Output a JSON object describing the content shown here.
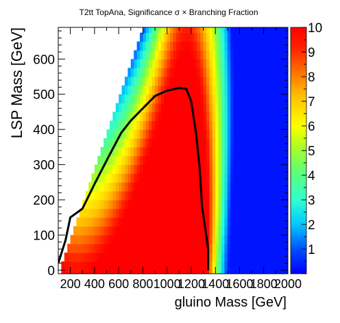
{
  "chart_data": {
    "type": "heatmap",
    "title": "T2tt TopAna, Significance σ × Branching Fraction",
    "xlabel": "gluino Mass [GeV]",
    "ylabel": "LSP Mass [GeV]",
    "xlim": [
      100,
      2000
    ],
    "ylim": [
      -10,
      690
    ],
    "zlim": [
      0,
      10
    ],
    "colormap": "rainbow (blue → cyan → green → yellow → orange → red)",
    "x_ticks": [
      200,
      400,
      600,
      800,
      1000,
      1200,
      1400,
      1600,
      1800,
      2000
    ],
    "x_tick_labels": [
      "200",
      "400",
      "600",
      "800",
      "1000",
      "1200",
      "1400",
      "1600",
      "1800",
      "2000"
    ],
    "y_ticks": [
      0,
      100,
      200,
      300,
      400,
      500,
      600
    ],
    "y_tick_labels": [
      "0",
      "100",
      "200",
      "300",
      "400",
      "500",
      "600"
    ],
    "z_ticks": [
      1,
      2,
      3,
      4,
      5,
      6,
      7,
      8,
      9,
      10
    ],
    "z_tick_labels": [
      "1",
      "2",
      "3",
      "4",
      "5",
      "6",
      "7",
      "8",
      "9",
      "10"
    ],
    "bin_size": {
      "x": 25,
      "y": 25
    },
    "kinematic_limit": {
      "lsp_max_offset": 105,
      "note": "cells filled only where LSP Mass <= gluino Mass - offset"
    },
    "region_model": {
      "saturated_region": "red (z >= 10) for x below ~1200 GeV and y below ~380 GeV",
      "high_sigma_ridge_x": 1180,
      "low_value_region": "blue (z < 1) for x above ~1500 GeV"
    },
    "contour": {
      "level": 5,
      "color": "#000000",
      "points": [
        [
          100,
          20
        ],
        [
          160,
          85
        ],
        [
          200,
          150
        ],
        [
          240,
          160
        ],
        [
          300,
          175
        ],
        [
          400,
          245
        ],
        [
          520,
          325
        ],
        [
          620,
          390
        ],
        [
          700,
          425
        ],
        [
          800,
          460
        ],
        [
          900,
          495
        ],
        [
          1000,
          510
        ],
        [
          1100,
          518
        ],
        [
          1160,
          515
        ],
        [
          1200,
          480
        ],
        [
          1240,
          390
        ],
        [
          1270,
          290
        ],
        [
          1290,
          180
        ],
        [
          1320,
          110
        ],
        [
          1340,
          60
        ],
        [
          1340,
          0
        ]
      ]
    }
  }
}
